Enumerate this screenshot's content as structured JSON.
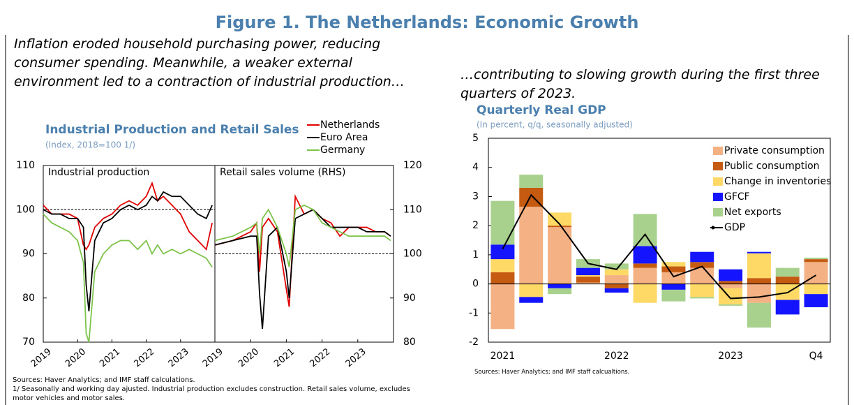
{
  "title": "Figure 1. The Netherlands: Economic Growth",
  "captions": [
    "Inflation eroded household purchasing power, reducing consumer spending. Meanwhile, a weaker external environment led to a contraction of industrial production…",
    "…contributing to slowing growth during the first three quarters of 2023."
  ],
  "chart_data": [
    {
      "type": "line",
      "title": "Industrial Production and Retail Sales",
      "subtitle": "(Index, 2018=100 1/)",
      "series": [
        {
          "name": "Netherlands",
          "color": "#e00000"
        },
        {
          "name": "Euro Area",
          "color": "#000000"
        },
        {
          "name": "Germany",
          "color": "#7dc34a"
        }
      ],
      "panels": [
        {
          "label": "Industrial production",
          "xlim": [
            2019,
            2024
          ],
          "xticks": [
            2019,
            2020,
            2021,
            2022,
            2023
          ],
          "ylim": [
            70,
            110
          ],
          "yticks": [
            70,
            80,
            90,
            100,
            110
          ],
          "reference_line": 100,
          "x": [
            2019,
            2019.25,
            2019.5,
            2019.75,
            2020,
            2020.17,
            2020.25,
            2020.33,
            2020.5,
            2020.75,
            2021,
            2021.25,
            2021.5,
            2021.75,
            2022,
            2022.17,
            2022.33,
            2022.5,
            2022.75,
            2023,
            2023.25,
            2023.5,
            2023.75,
            2023.92
          ],
          "series": [
            {
              "values": [
                101,
                99,
                99,
                99,
                98,
                92,
                91,
                92,
                96,
                98,
                99,
                101,
                102,
                101,
                103,
                106,
                102,
                103,
                101,
                99,
                95,
                93,
                91,
                97
              ]
            },
            {
              "values": [
                100,
                99,
                99,
                98,
                98,
                96,
                83,
                77,
                93,
                97,
                98,
                100,
                101,
                100,
                101,
                103,
                102,
                104,
                103,
                103,
                101,
                99,
                98,
                101
              ]
            },
            {
              "values": [
                99,
                97,
                96,
                95,
                93,
                88,
                72,
                70,
                86,
                90,
                92,
                93,
                93,
                91,
                93,
                90,
                92,
                90,
                91,
                90,
                91,
                90,
                89,
                87
              ]
            }
          ]
        },
        {
          "label": "Retail sales volume (RHS)",
          "xlim": [
            2019,
            2024
          ],
          "xticks": [
            2019,
            2020,
            2021,
            2022,
            2023
          ],
          "ylim": [
            80,
            120
          ],
          "yticks": [
            80,
            90,
            100,
            110,
            120
          ],
          "reference_line": 100,
          "x": [
            2019,
            2019.5,
            2020,
            2020.17,
            2020.25,
            2020.33,
            2020.5,
            2020.75,
            2021,
            2021.08,
            2021.25,
            2021.5,
            2021.75,
            2022,
            2022.25,
            2022.5,
            2022.75,
            2023,
            2023.25,
            2023.5,
            2023.75,
            2023.92
          ],
          "series": [
            {
              "values": [
                102,
                103,
                105,
                107,
                96,
                106,
                108,
                105,
                92,
                88,
                113,
                109,
                110,
                108,
                107,
                104,
                106,
                106,
                106,
                105,
                105,
                104
              ]
            },
            {
              "values": [
                102,
                103,
                104,
                104,
                91,
                83,
                104,
                106,
                96,
                90,
                108,
                109,
                110,
                108,
                106,
                106,
                106,
                106,
                105,
                105,
                105,
                104
              ]
            },
            {
              "values": [
                103,
                104,
                106,
                107,
                100,
                108,
                110,
                106,
                100,
                97,
                110,
                111,
                110,
                107,
                106,
                105,
                104,
                104,
                104,
                104,
                104,
                103
              ]
            }
          ]
        }
      ],
      "sources": "Sources: Haver Analytics; and IMF staff calculations.",
      "notes": "1/ Seasonally and working day ajusted. Industrial production excludes construction. Retail sales volume, excludes motor vehicles and motor sales."
    },
    {
      "type": "bar",
      "stacked": true,
      "title": "Quarterly Real GDP",
      "subtitle": "(In percent, q/q, seasonally adjusted)",
      "categories": [
        "2021",
        null,
        null,
        null,
        "2022",
        null,
        null,
        null,
        "2023",
        null,
        null,
        "Q4"
      ],
      "series": [
        {
          "name": "Private consumption",
          "color": "#f4b183",
          "values": [
            -1.55,
            2.65,
            1.95,
            0.05,
            0.3,
            0.55,
            0.4,
            0.55,
            -0.15,
            -0.65,
            0,
            0.75
          ]
        },
        {
          "name": "Public consumption",
          "color": "#c55a11",
          "values": [
            0.4,
            0.65,
            0.05,
            0.2,
            -0.15,
            0.15,
            0.2,
            0.2,
            0.1,
            0.2,
            0.25,
            0.1
          ]
        },
        {
          "name": "Change in inventories",
          "color": "#ffd966",
          "values": [
            0.45,
            -0.45,
            0.45,
            0.05,
            0.2,
            -0.65,
            0.15,
            -0.45,
            -0.55,
            0.85,
            -0.55,
            -0.35
          ]
        },
        {
          "name": "GFCF",
          "color": "#1414ff",
          "values": [
            0.5,
            -0.2,
            -0.15,
            0.25,
            -0.15,
            0.6,
            -0.2,
            0.35,
            0.4,
            0.05,
            -0.5,
            -0.45
          ]
        },
        {
          "name": "Net exports",
          "color": "#a9d18e",
          "values": [
            1.5,
            0.45,
            -0.2,
            0.3,
            0.2,
            1.1,
            -0.4,
            -0.05,
            -0.05,
            -0.85,
            0.3,
            0.05
          ]
        },
        {
          "name": "GDP",
          "color": "#000000",
          "type": "line",
          "values": [
            1.2,
            3.05,
            2.05,
            0.7,
            0.5,
            1.7,
            0.25,
            0.6,
            -0.5,
            -0.45,
            -0.3,
            0.3
          ]
        }
      ],
      "ylim": [
        -2,
        5
      ],
      "yticks": [
        -2,
        -1,
        0,
        1,
        2,
        3,
        4,
        5
      ],
      "sources": "Sources: Haver Analytics; and IMF staff calcualtions."
    }
  ]
}
